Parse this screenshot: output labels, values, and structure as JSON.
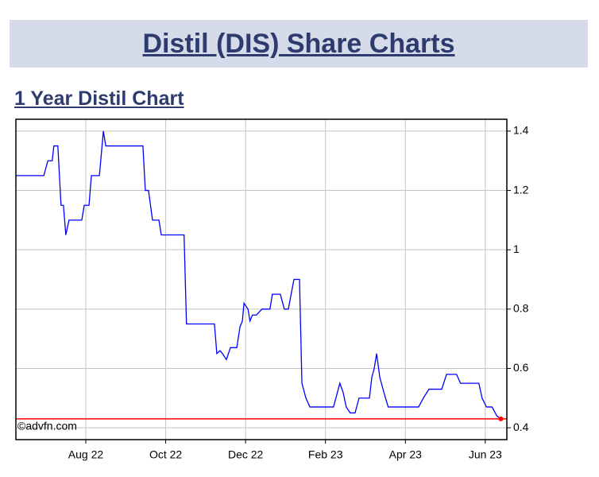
{
  "header": {
    "title": "Distil (DIS) Share Charts",
    "subtitle": "1 Year Distil Chart"
  },
  "chart_data": {
    "type": "line",
    "watermark": "©advfn.com",
    "x": [
      6.25,
      6.95,
      7.05,
      7.16,
      7.2,
      7.3,
      7.38,
      7.44,
      7.5,
      7.58,
      7.9,
      7.96,
      8.08,
      8.14,
      8.34,
      8.44,
      8.5,
      9.43,
      9.49,
      9.57,
      9.67,
      9.83,
      9.89,
      10.46,
      10.52,
      11.22,
      11.28,
      11.36,
      11.42,
      11.52,
      11.62,
      11.78,
      11.86,
      11.92,
      11.96,
      12.06,
      12.11,
      12.17,
      12.27,
      12.41,
      12.61,
      12.67,
      12.87,
      12.97,
      13.07,
      13.21,
      13.35,
      13.41,
      13.51,
      13.61,
      14.2,
      14.3,
      14.36,
      14.44,
      14.52,
      14.62,
      14.74,
      14.84,
      15.1,
      15.16,
      15.22,
      15.28,
      15.36,
      15.46,
      15.57,
      16.33,
      16.45,
      16.59,
      16.91,
      17.03,
      17.28,
      17.38,
      17.84,
      17.92,
      18.03,
      18.17,
      18.29,
      18.39
    ],
    "series": [
      {
        "color": "#0000ff",
        "values": [
          1.25,
          1.25,
          1.3,
          1.3,
          1.35,
          1.35,
          1.15,
          1.15,
          1.05,
          1.1,
          1.1,
          1.15,
          1.15,
          1.25,
          1.25,
          1.4,
          1.35,
          1.35,
          1.2,
          1.2,
          1.1,
          1.1,
          1.05,
          1.05,
          0.75,
          0.75,
          0.65,
          0.66,
          0.65,
          0.63,
          0.67,
          0.67,
          0.74,
          0.76,
          0.82,
          0.8,
          0.76,
          0.78,
          0.78,
          0.8,
          0.8,
          0.85,
          0.85,
          0.8,
          0.8,
          0.9,
          0.9,
          0.55,
          0.5,
          0.47,
          0.47,
          0.52,
          0.55,
          0.52,
          0.47,
          0.45,
          0.45,
          0.5,
          0.5,
          0.57,
          0.6,
          0.65,
          0.57,
          0.52,
          0.47,
          0.47,
          0.5,
          0.53,
          0.53,
          0.58,
          0.58,
          0.55,
          0.55,
          0.5,
          0.47,
          0.47,
          0.44,
          0.43
        ]
      }
    ],
    "last_price_line": {
      "value": 0.43,
      "color": "#ff0000"
    },
    "xlim": [
      6.25,
      18.54
    ],
    "xticks": [
      {
        "value": 8,
        "label": "Aug 22"
      },
      {
        "value": 10,
        "label": "Oct 22"
      },
      {
        "value": 12,
        "label": "Dec 22"
      },
      {
        "value": 14,
        "label": "Feb 23"
      },
      {
        "value": 16,
        "label": "Apr 23"
      },
      {
        "value": 18,
        "label": "Jun 23"
      }
    ],
    "ylim": [
      0.36,
      1.44
    ],
    "yticks": [
      0.4,
      0.6,
      0.8,
      1,
      1.2,
      1.4
    ],
    "grid": true
  }
}
